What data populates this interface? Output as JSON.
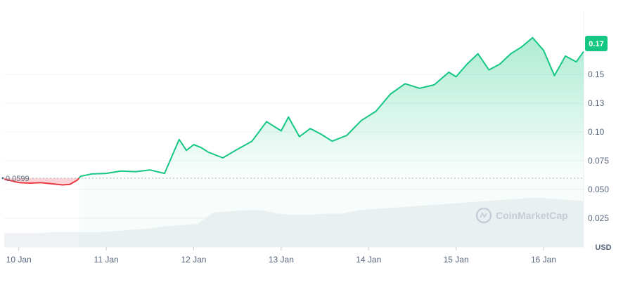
{
  "chart_data": {
    "type": "line",
    "title": "",
    "y_axis_unit": "USD",
    "ylim": [
      0.0,
      0.205
    ],
    "y_ticks": [
      "0.025",
      "0.050",
      "0.075",
      "0.10",
      "0.13",
      "0.15"
    ],
    "y_tick_values": [
      0.025,
      0.05,
      0.075,
      0.1,
      0.125,
      0.15
    ],
    "x_ticks": [
      "10 Jan",
      "11 Jan",
      "12 Jan",
      "13 Jan",
      "14 Jan",
      "15 Jan",
      "16 Jan"
    ],
    "reference_price": 0.0599,
    "reference_label": "0.0599",
    "current_price_label": "0.17",
    "watermark": "CoinMarketCap",
    "colors": {
      "up": "#16c784",
      "down": "#ea3943",
      "up_fill": "#16c784",
      "down_fill": "#ea3943",
      "volume": "#eff2f5"
    },
    "series": [
      {
        "x": [
          "2024-01-09 20:00",
          "2024-01-10 00:00",
          "2024-01-10 03:00",
          "2024-01-10 06:00",
          "2024-01-10 09:00",
          "2024-01-10 12:00",
          "2024-01-10 14:00",
          "2024-01-10 16:00",
          "2024-01-10 17:00",
          "2024-01-10 20:00",
          "2024-01-11 00:00",
          "2024-01-11 04:00",
          "2024-01-11 08:00",
          "2024-01-11 12:00",
          "2024-01-11 16:00",
          "2024-01-11 20:00",
          "2024-01-11 22:00",
          "2024-01-12 00:00",
          "2024-01-12 02:00",
          "2024-01-12 04:00",
          "2024-01-12 08:00",
          "2024-01-12 12:00",
          "2024-01-12 16:00",
          "2024-01-12 20:00",
          "2024-01-13 00:00",
          "2024-01-13 02:00",
          "2024-01-13 05:00",
          "2024-01-13 08:00",
          "2024-01-13 11:00",
          "2024-01-13 14:00",
          "2024-01-13 18:00",
          "2024-01-13 22:00",
          "2024-01-14 02:00",
          "2024-01-14 06:00",
          "2024-01-14 10:00",
          "2024-01-14 14:00",
          "2024-01-14 18:00",
          "2024-01-14 22:00",
          "2024-01-15 00:00",
          "2024-01-15 03:00",
          "2024-01-15 06:00",
          "2024-01-15 09:00",
          "2024-01-15 12:00",
          "2024-01-15 15:00",
          "2024-01-15 18:00",
          "2024-01-15 21:00",
          "2024-01-16 00:00",
          "2024-01-16 03:00",
          "2024-01-16 06:00",
          "2024-01-16 09:00",
          "2024-01-16 11:00"
        ],
        "y": [
          0.059,
          0.056,
          0.0555,
          0.056,
          0.055,
          0.054,
          0.0545,
          0.058,
          0.0615,
          0.0635,
          0.064,
          0.066,
          0.0655,
          0.067,
          0.064,
          0.0935,
          0.084,
          0.089,
          0.0865,
          0.0825,
          0.0775,
          0.085,
          0.092,
          0.109,
          0.101,
          0.113,
          0.096,
          0.103,
          0.098,
          0.092,
          0.097,
          0.11,
          0.118,
          0.133,
          0.142,
          0.138,
          0.141,
          0.152,
          0.148,
          0.159,
          0.168,
          0.154,
          0.159,
          0.168,
          0.174,
          0.182,
          0.171,
          0.149,
          0.166,
          0.161,
          0.17
        ]
      }
    ],
    "volume": [
      0.012,
      0.012,
      0.012,
      0.013,
      0.013,
      0.013,
      0.013,
      0.014,
      0.015,
      0.016,
      0.018,
      0.019,
      0.02,
      0.03,
      0.031,
      0.032,
      0.032,
      0.029,
      0.028,
      0.028,
      0.029,
      0.029,
      0.032,
      0.033,
      0.034,
      0.035,
      0.036,
      0.037,
      0.038,
      0.039,
      0.04,
      0.041,
      0.042,
      0.043,
      0.042,
      0.041,
      0.04
    ]
  }
}
